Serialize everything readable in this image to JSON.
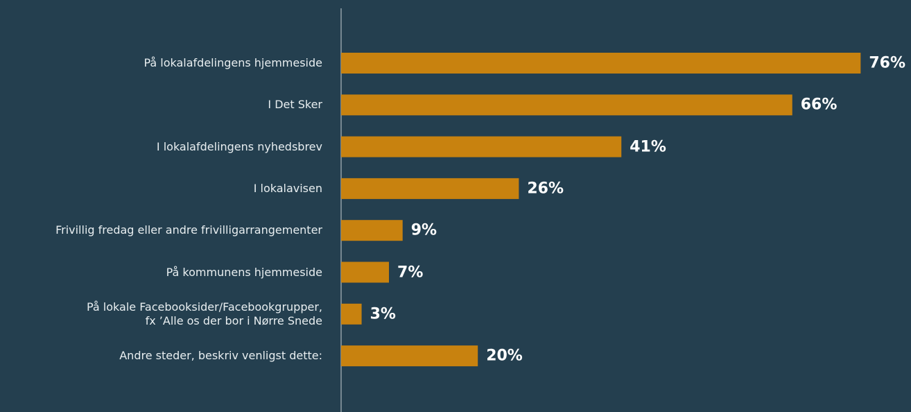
{
  "chart_data": {
    "type": "barh",
    "categories": [
      "På lokalafdelingens hjemmeside",
      "I Det Sker",
      "I lokalafdelingens nyhedsbrev",
      "I lokalavisen",
      "Frivillig fredag eller andre frivilligarrangementer",
      "På kommunens hjemmeside",
      "På lokale Facebooksider/Facebookgrupper,\nfx ’Alle os der bor i Nørre Snede",
      "Andre steder, beskriv venligst dette:"
    ],
    "values": [
      76,
      66,
      41,
      26,
      9,
      7,
      3,
      20
    ],
    "value_labels": [
      "76%",
      "66%",
      "41%",
      "26%",
      "9%",
      "7%",
      "3%",
      "20%"
    ],
    "color": "#c8820f"
  }
}
